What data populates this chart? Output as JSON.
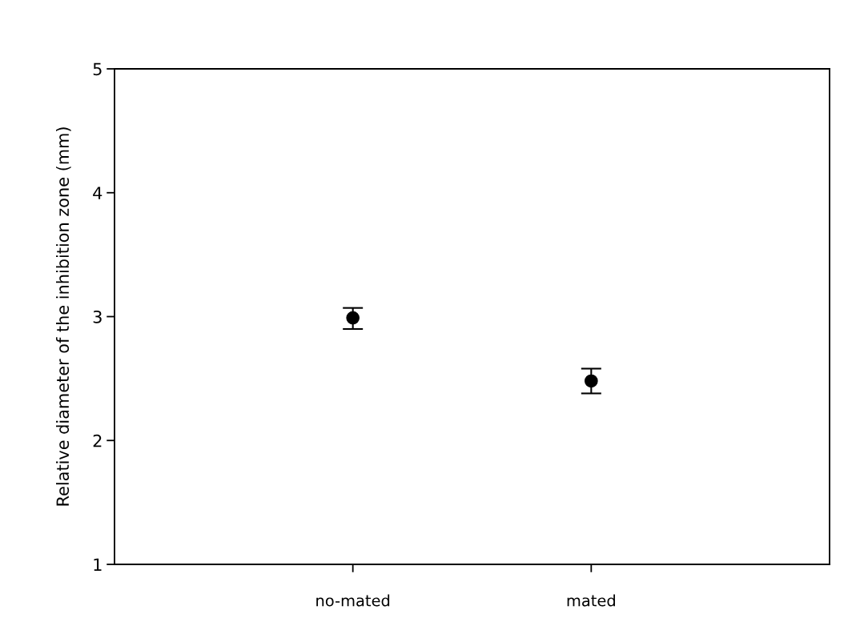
{
  "chart_data": {
    "type": "scatter",
    "ylabel": "Relative diameter of the inhibition zone (mm)",
    "categories": [
      "no-mated",
      "mated"
    ],
    "series": [
      {
        "color": "#000000",
        "values": [
          2.99,
          2.48
        ],
        "errors": [
          [
            2.9,
            3.07
          ],
          [
            2.38,
            2.58
          ]
        ]
      }
    ],
    "ylim": [
      1,
      5
    ],
    "yticks": [
      1,
      2,
      3,
      4,
      5
    ],
    "marker": "circle",
    "grid": false,
    "legend": false
  }
}
